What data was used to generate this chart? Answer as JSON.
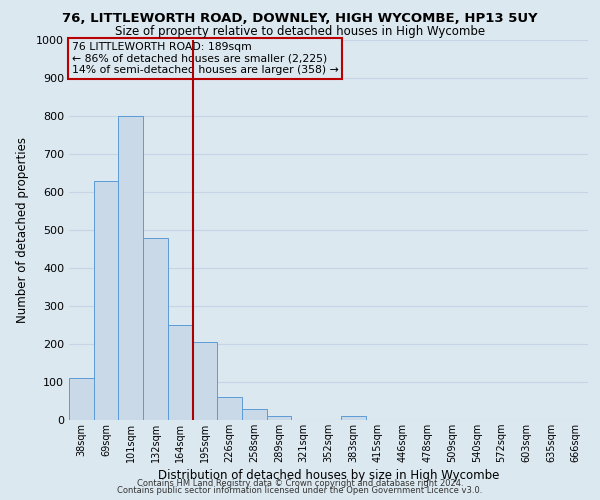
{
  "title1": "76, LITTLEWORTH ROAD, DOWNLEY, HIGH WYCOMBE, HP13 5UY",
  "title2": "Size of property relative to detached houses in High Wycombe",
  "xlabel": "Distribution of detached houses by size in High Wycombe",
  "ylabel": "Number of detached properties",
  "footer1": "Contains HM Land Registry data © Crown copyright and database right 2024.",
  "footer2": "Contains public sector information licensed under the Open Government Licence v3.0.",
  "bin_labels": [
    "38sqm",
    "69sqm",
    "101sqm",
    "132sqm",
    "164sqm",
    "195sqm",
    "226sqm",
    "258sqm",
    "289sqm",
    "321sqm",
    "352sqm",
    "383sqm",
    "415sqm",
    "446sqm",
    "478sqm",
    "509sqm",
    "540sqm",
    "572sqm",
    "603sqm",
    "635sqm",
    "666sqm"
  ],
  "bar_heights": [
    110,
    630,
    800,
    480,
    250,
    205,
    60,
    28,
    10,
    0,
    0,
    10,
    0,
    0,
    0,
    0,
    0,
    0,
    0,
    0,
    0
  ],
  "bar_color": "#c9d9e8",
  "bar_edge_color": "#5b9bd5",
  "property_line_color": "#aa0000",
  "annotation_line1": "76 LITTLEWORTH ROAD: 189sqm",
  "annotation_line2": "← 86% of detached houses are smaller (2,225)",
  "annotation_line3": "14% of semi-detached houses are larger (358) →",
  "annotation_box_color": "#bb0000",
  "ylim": [
    0,
    1000
  ],
  "yticks": [
    0,
    100,
    200,
    300,
    400,
    500,
    600,
    700,
    800,
    900,
    1000
  ],
  "grid_color": "#c5d5e5",
  "bg_color": "#dce8f0"
}
